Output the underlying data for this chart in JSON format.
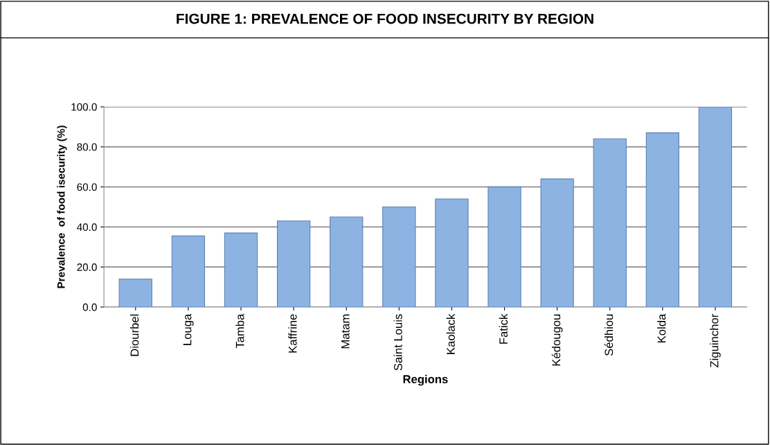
{
  "chart_data": {
    "type": "bar",
    "title": "FIGURE 1: PREVALENCE OF FOOD INSECURITY BY REGION",
    "xlabel": "Regions",
    "ylabel": "Prevalence  of food isecurity (%)",
    "categories": [
      "Diourbel",
      "Louga",
      "Tamba",
      "Kaffrine",
      "Matam",
      "Saint Louis",
      "Kaolack",
      "Fatick",
      "Kédougou",
      "Sédhiou",
      "Kolda",
      "Ziguinchor"
    ],
    "values": [
      14,
      35.5,
      37,
      43,
      45,
      50,
      54,
      60,
      64,
      84,
      87,
      100
    ],
    "color": "#8db3e2",
    "ylim": [
      0,
      100
    ],
    "yticks": [
      {
        "value": 0,
        "label": "0.0"
      },
      {
        "value": 20,
        "label": "20.0"
      },
      {
        "value": 40,
        "label": "40.0"
      },
      {
        "value": 60,
        "label": "60.0"
      },
      {
        "value": 80,
        "label": "80.0"
      },
      {
        "value": 100,
        "label": "100.0"
      }
    ],
    "grid": "y"
  }
}
